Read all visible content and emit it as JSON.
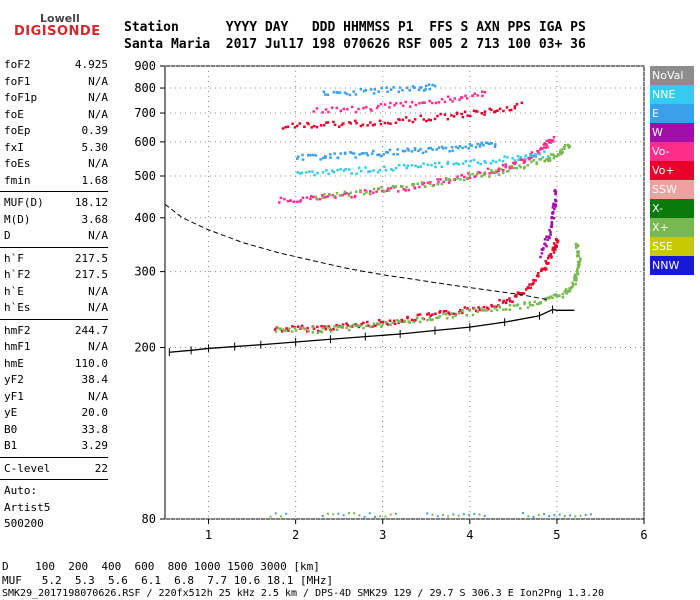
{
  "logo": {
    "brand": "Lowell",
    "product": "DIGISONDE"
  },
  "header": {
    "line1": "Station      YYYY DAY   DDD HHMMSS P1  FFS S AXN PPS IGA PS",
    "line2": "Santa Maria  2017 Jul17 198 070626 RSF 005 2 713 100 03+ 36"
  },
  "params_a": [
    {
      "k": "foF2",
      "v": "4.925"
    },
    {
      "k": "foF1",
      "v": "N/A"
    },
    {
      "k": "foF1p",
      "v": "N/A"
    },
    {
      "k": "foE",
      "v": "N/A"
    },
    {
      "k": "foEp",
      "v": "0.39"
    },
    {
      "k": "fxI",
      "v": "5.30"
    },
    {
      "k": "foEs",
      "v": "N/A"
    },
    {
      "k": "fmin",
      "v": "1.68"
    }
  ],
  "params_b": [
    {
      "k": "MUF(D)",
      "v": "18.12"
    },
    {
      "k": "M(D)",
      "v": "3.68"
    },
    {
      "k": "D",
      "v": "N/A"
    }
  ],
  "params_c": [
    {
      "k": "h`F",
      "v": "217.5"
    },
    {
      "k": "h`F2",
      "v": "217.5"
    },
    {
      "k": "h`E",
      "v": "N/A"
    },
    {
      "k": "h`Es",
      "v": "N/A"
    }
  ],
  "params_d": [
    {
      "k": "hmF2",
      "v": "244.7"
    },
    {
      "k": "hmF1",
      "v": "N/A"
    },
    {
      "k": "hmE",
      "v": "110.0"
    },
    {
      "k": "yF2",
      "v": "38.4"
    },
    {
      "k": "yF1",
      "v": "N/A"
    },
    {
      "k": "yE",
      "v": "20.0"
    },
    {
      "k": "B0",
      "v": "33.8"
    },
    {
      "k": "B1",
      "v": "3.29"
    }
  ],
  "params_e": [
    {
      "k": "C-level",
      "v": "22"
    }
  ],
  "auto": {
    "l1": "Auto:",
    "l2": "Artist5",
    "l3": "500200"
  },
  "legend": [
    {
      "label": "NoVal",
      "color": "#8c8c8c"
    },
    {
      "label": "NNE",
      "color": "#33ccf0"
    },
    {
      "label": "E",
      "color": "#3aa0e8"
    },
    {
      "label": "W",
      "color": "#a010a8"
    },
    {
      "label": "Vo-",
      "color": "#ff2e8c"
    },
    {
      "label": "Vo+",
      "color": "#e8002a"
    },
    {
      "label": "SSW",
      "color": "#f0a0a0"
    },
    {
      "label": "X-",
      "color": "#0a7a0a"
    },
    {
      "label": "X+",
      "color": "#78b850"
    },
    {
      "label": "SSE",
      "color": "#c8c800"
    },
    {
      "label": "NNW",
      "color": "#1818d8"
    }
  ],
  "footer": {
    "line1": "D    100  200  400  600  800 1000 1500 3000 [km]",
    "line2": "MUF   5.2  5.3  5.6  6.1  6.8  7.7 10.6 18.1 [MHz]",
    "line3": "SMK29_2017198070626.RSF / 220fx512h 25 kHz 2.5 km / DPS-4D SMK29 129 / 29.7 S 306.3 E Ion2Png 1.3.20"
  },
  "chart_data": {
    "type": "scatter",
    "title": "",
    "xlabel": "",
    "ylabel": "",
    "xlim": [
      0.5,
      6.0
    ],
    "ylim": [
      80,
      900
    ],
    "y_scale": "log",
    "xticks": [
      "1",
      "2",
      "3",
      "4",
      "5",
      "6"
    ],
    "yticks": [
      "80",
      "200",
      "300",
      "400",
      "500",
      "600",
      "700",
      "800",
      "900"
    ],
    "grid": "dotted",
    "legend_placement": "right",
    "series": [
      {
        "color": "#e8002a",
        "points": [
          [
            1.75,
            222
          ],
          [
            2.2,
            223
          ],
          [
            2.6,
            226
          ],
          [
            3,
            230
          ],
          [
            3.4,
            236
          ],
          [
            3.8,
            243
          ],
          [
            4.2,
            251
          ],
          [
            4.5,
            262
          ],
          [
            4.7,
            280
          ],
          [
            4.85,
            310
          ],
          [
            4.95,
            340
          ],
          [
            5.0,
            360
          ]
        ]
      },
      {
        "color": "#78b850",
        "points": [
          [
            1.75,
            220
          ],
          [
            2.2,
            221
          ],
          [
            2.6,
            224
          ],
          [
            3,
            228
          ],
          [
            3.4,
            233
          ],
          [
            3.8,
            240
          ],
          [
            4.2,
            246
          ],
          [
            4.6,
            252
          ],
          [
            4.9,
            260
          ],
          [
            5.1,
            270
          ],
          [
            5.2,
            290
          ],
          [
            5.25,
            320
          ],
          [
            5.2,
            350
          ]
        ]
      },
      {
        "color": "#ff2e8c",
        "points": [
          [
            1.8,
            443
          ],
          [
            2.2,
            447
          ],
          [
            2.6,
            455
          ],
          [
            3,
            465
          ],
          [
            3.4,
            478
          ],
          [
            3.8,
            495
          ],
          [
            4.2,
            515
          ],
          [
            4.5,
            535
          ],
          [
            4.7,
            560
          ],
          [
            4.85,
            590
          ],
          [
            4.95,
            615
          ]
        ]
      },
      {
        "color": "#78b850",
        "points": [
          [
            2.2,
            450
          ],
          [
            2.8,
            462
          ],
          [
            3.4,
            478
          ],
          [
            4,
            500
          ],
          [
            4.4,
            518
          ],
          [
            4.8,
            545
          ],
          [
            5.0,
            565
          ],
          [
            5.15,
            595
          ]
        ]
      },
      {
        "color": "#3aa0e8",
        "points": [
          [
            2.0,
            555
          ],
          [
            2.4,
            560
          ],
          [
            2.8,
            565
          ],
          [
            3.2,
            572
          ],
          [
            3.6,
            580
          ],
          [
            4.0,
            590
          ],
          [
            4.3,
            598
          ]
        ]
      },
      {
        "color": "#33ccf0",
        "points": [
          [
            2.0,
            510
          ],
          [
            2.5,
            515
          ],
          [
            3.0,
            522
          ],
          [
            3.5,
            530
          ],
          [
            4.0,
            540
          ],
          [
            4.5,
            552
          ],
          [
            4.9,
            568
          ]
        ]
      },
      {
        "color": "#e8002a",
        "points": [
          [
            1.85,
            655
          ],
          [
            2.3,
            660
          ],
          [
            2.8,
            668
          ],
          [
            3.3,
            680
          ],
          [
            3.8,
            695
          ],
          [
            4.2,
            710
          ],
          [
            4.6,
            735
          ]
        ]
      },
      {
        "color": "#ff2e8c",
        "points": [
          [
            2.2,
            710
          ],
          [
            2.8,
            722
          ],
          [
            3.3,
            740
          ],
          [
            3.8,
            760
          ],
          [
            4.2,
            780
          ]
        ]
      },
      {
        "color": "#3aa0e8",
        "points": [
          [
            2.3,
            780
          ],
          [
            2.8,
            790
          ],
          [
            3.3,
            800
          ],
          [
            3.6,
            810
          ]
        ]
      },
      {
        "color": "#a010a8",
        "points": [
          [
            4.8,
            330
          ],
          [
            4.9,
            370
          ],
          [
            4.95,
            420
          ],
          [
            4.98,
            470
          ]
        ]
      }
    ],
    "profile": {
      "color": "#000",
      "x": [
        0.55,
        0.8,
        1.0,
        1.3,
        1.6,
        2.0,
        2.4,
        2.8,
        3.2,
        3.6,
        4.0,
        4.4,
        4.8,
        4.95,
        5.0,
        5.2
      ],
      "y": [
        195,
        197,
        199,
        201,
        203,
        206,
        209,
        212,
        215,
        219,
        223,
        229,
        237,
        245,
        244,
        244
      ]
    },
    "dashed": {
      "color": "#000",
      "x": [
        0.5,
        0.7,
        1.0,
        1.4,
        1.8,
        2.2,
        2.6,
        3.0,
        3.4,
        3.8,
        4.2,
        4.6,
        4.9
      ],
      "y": [
        430,
        400,
        375,
        350,
        332,
        318,
        305,
        295,
        287,
        279,
        272,
        265,
        258
      ]
    }
  }
}
